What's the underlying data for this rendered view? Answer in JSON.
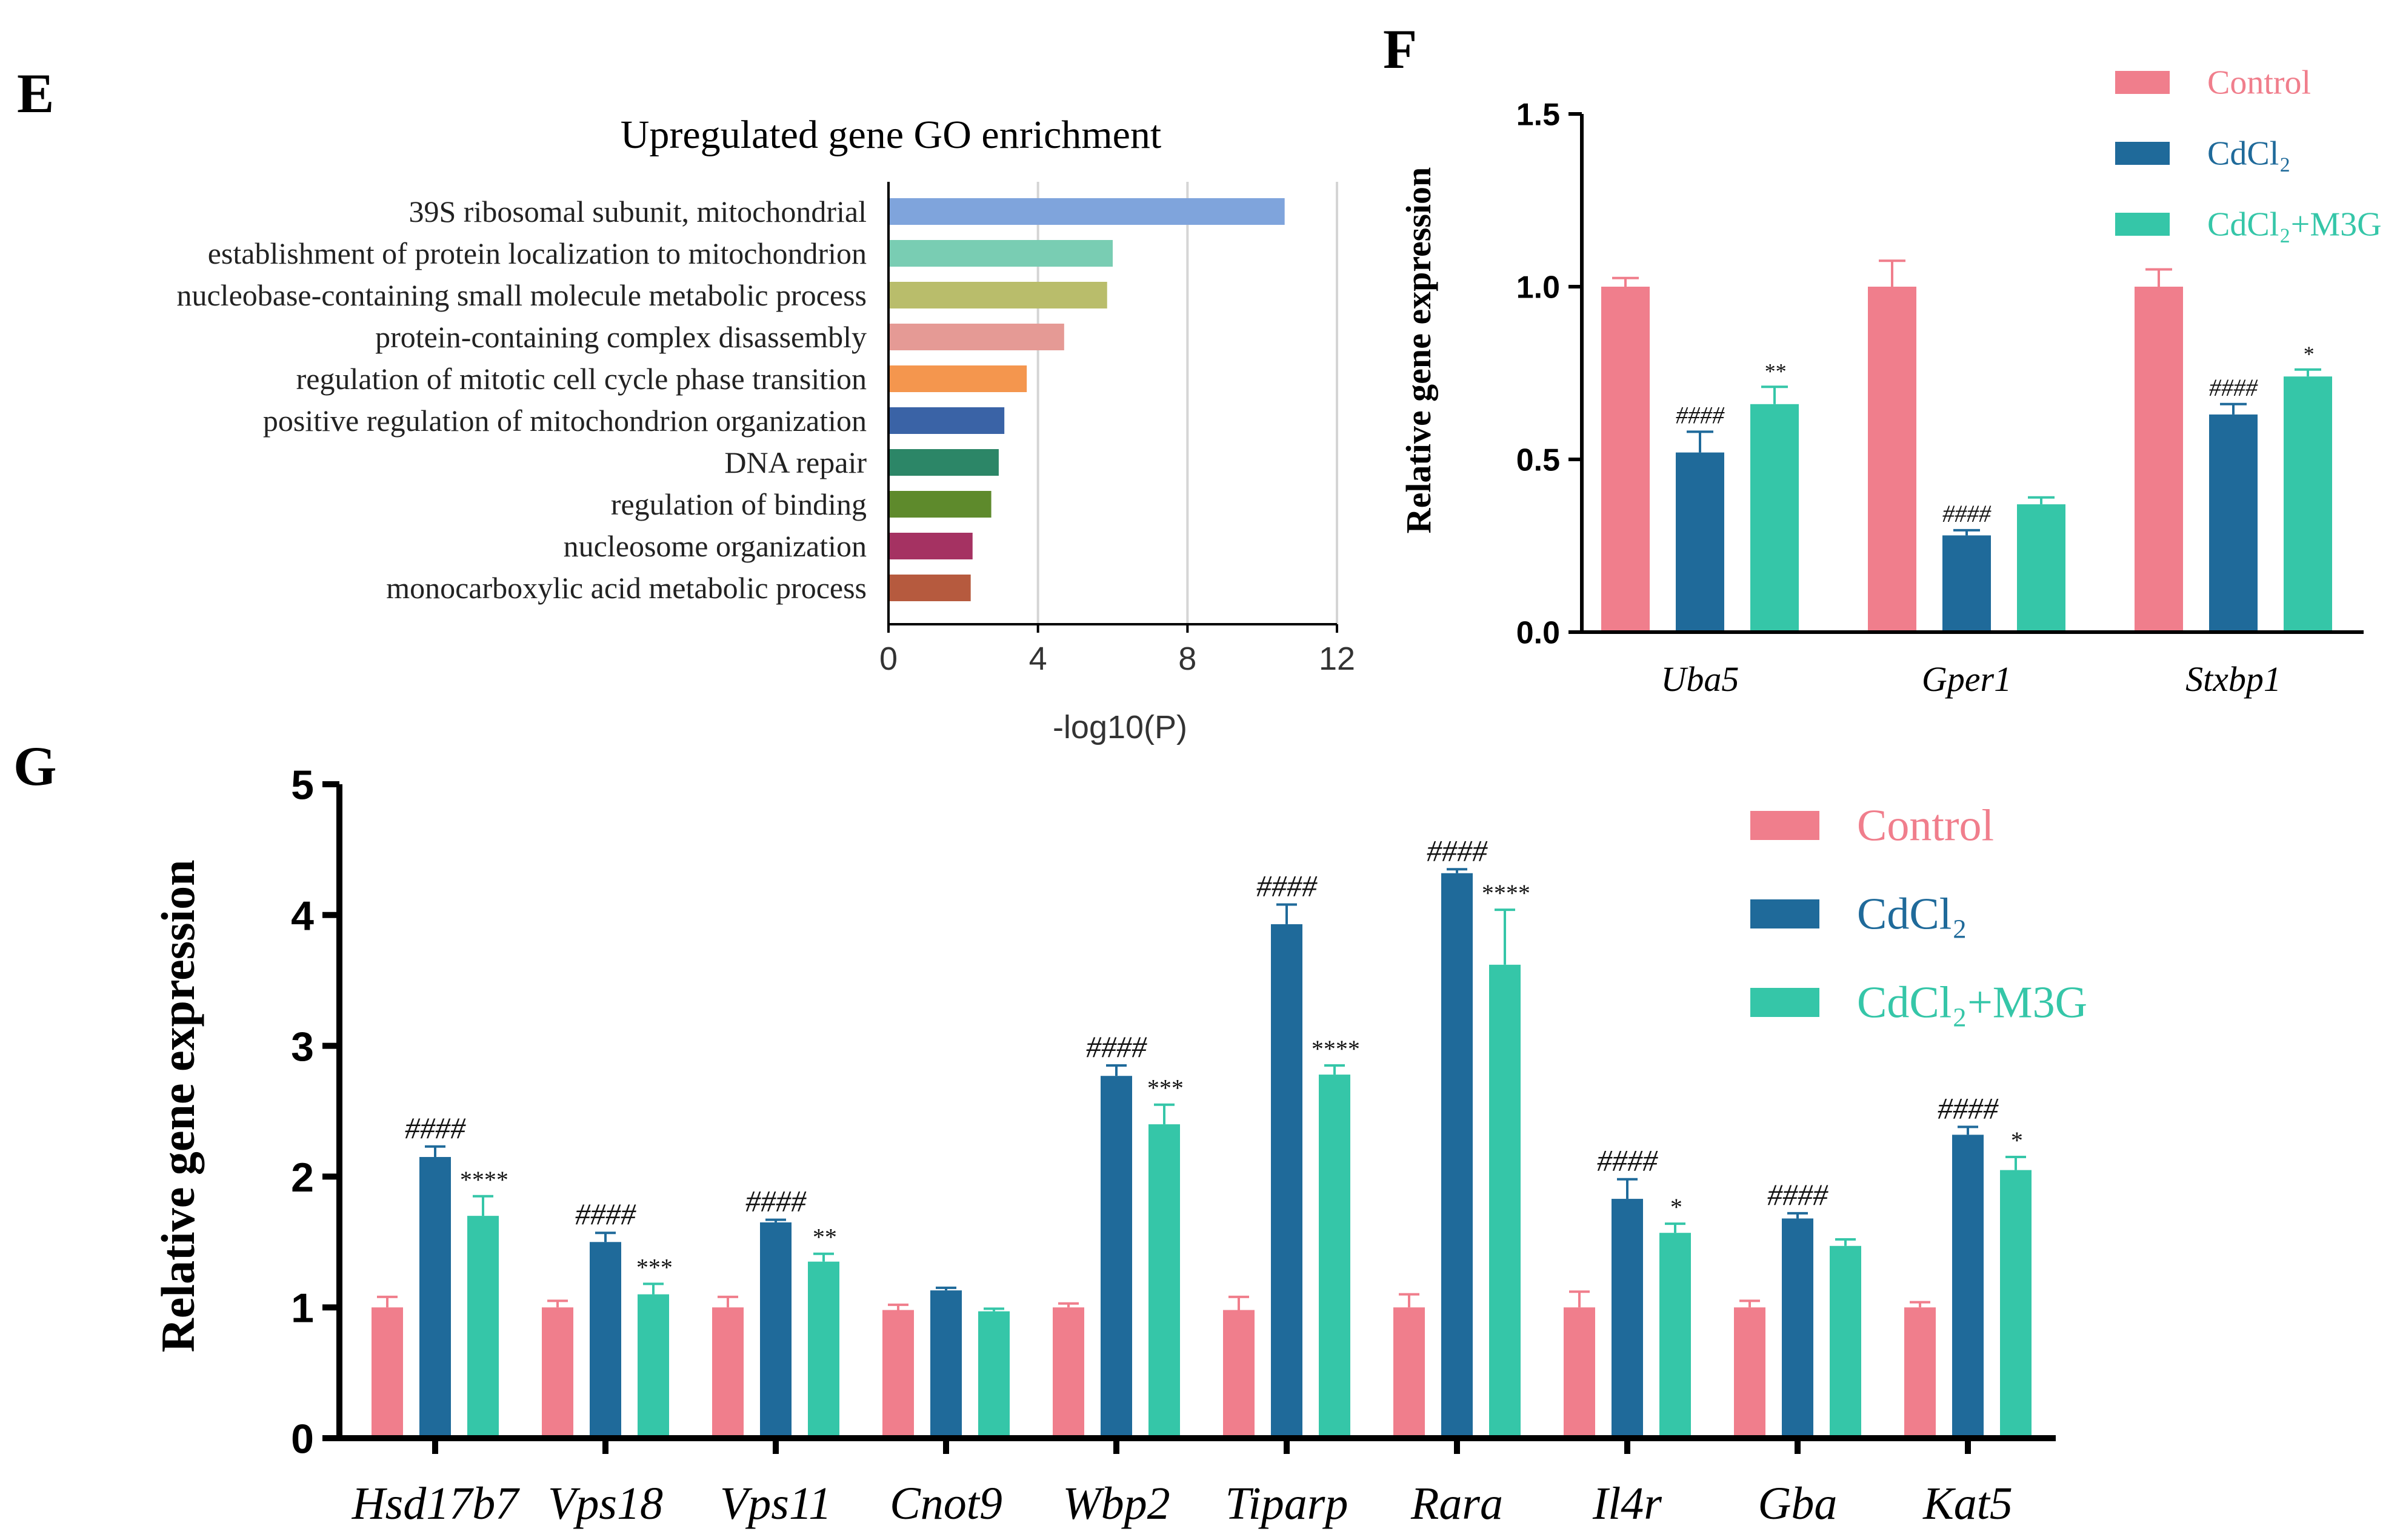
{
  "panels": {
    "E": "E",
    "F": "F",
    "G": "G"
  },
  "colors": {
    "control": "#F07E8C",
    "cdcl2": "#1F6A9A",
    "m3g": "#35C6A8",
    "axis": "#000000",
    "grid": "#D5D5D5"
  },
  "chart_data": [
    {
      "id": "E",
      "type": "bar",
      "orientation": "horizontal",
      "title": "Upregulated gene GO enrichment",
      "xlabel": "-log10(P)",
      "ylabel": "",
      "xlim": [
        0,
        12
      ],
      "xticks": [
        "0",
        "4",
        "8",
        "12"
      ],
      "grid": true,
      "categories": [
        "39S ribosomal subunit, mitochondrial",
        "establishment of protein localization to mitochondrion",
        "nucleobase-containing small molecule metabolic process",
        "protein-containing complex disassembly",
        "regulation of mitotic cell cycle phase transition",
        "positive regulation of mitochondrion organization",
        "DNA repair",
        "regulation of binding",
        "nucleosome organization",
        "monocarboxylic acid metabolic process"
      ],
      "values": [
        10.6,
        6.0,
        5.85,
        4.7,
        3.7,
        3.1,
        2.95,
        2.75,
        2.25,
        2.2
      ],
      "bar_colors": [
        "#7FA4DC",
        "#79CDB3",
        "#B9BD6B",
        "#E59A95",
        "#F4964E",
        "#3A63A6",
        "#2C8667",
        "#5E8A2C",
        "#A53262",
        "#B65A3E"
      ]
    },
    {
      "id": "F",
      "type": "bar",
      "ylabel": "Relative gene expression",
      "xlabel": "",
      "ylim": [
        0,
        1.5
      ],
      "yticks": [
        "0.0",
        "0.5",
        "1.0",
        "1.5"
      ],
      "categories": [
        "Uba5",
        "Gper1",
        "Stxbp1"
      ],
      "series": [
        {
          "name": "Control",
          "legend_label": "Control",
          "values": [
            1.0,
            1.0,
            1.0
          ],
          "errors": [
            0.025,
            0.075,
            0.05
          ]
        },
        {
          "name": "CdCl2",
          "legend_label": "CdCl₂",
          "values": [
            0.52,
            0.28,
            0.63
          ],
          "errors": [
            0.06,
            0.015,
            0.03
          ]
        },
        {
          "name": "CdCl2+M3G",
          "legend_label": "CdCl₂+M3G",
          "values": [
            0.66,
            0.37,
            0.74
          ],
          "errors": [
            0.05,
            0.02,
            0.02
          ]
        }
      ],
      "annotations": [
        {
          "text": "####",
          "category": 0,
          "series": 1
        },
        {
          "text": "**",
          "category": 0,
          "series": 2
        },
        {
          "text": "####",
          "category": 1,
          "series": 1
        },
        {
          "text": "####",
          "category": 2,
          "series": 1
        },
        {
          "text": "*",
          "category": 2,
          "series": 2
        }
      ],
      "legend": "top-right"
    },
    {
      "id": "G",
      "type": "bar",
      "ylabel": "Relative gene expression",
      "xlabel": "",
      "ylim": [
        0,
        5
      ],
      "yticks": [
        "0",
        "1",
        "2",
        "3",
        "4",
        "5"
      ],
      "categories": [
        "Hsd17b7",
        "Vps18",
        "Vps11",
        "Cnot9",
        "Wbp2",
        "Tiparp",
        "Rara",
        "Il4r",
        "Gba",
        "Kat5"
      ],
      "series": [
        {
          "name": "Control",
          "legend_label": "Control",
          "values": [
            1.0,
            1.0,
            1.0,
            0.98,
            1.0,
            0.98,
            1.0,
            1.0,
            1.0,
            1.0
          ],
          "errors": [
            0.08,
            0.05,
            0.08,
            0.04,
            0.03,
            0.1,
            0.1,
            0.12,
            0.05,
            0.04
          ]
        },
        {
          "name": "CdCl2",
          "legend_label": "CdCl₂",
          "values": [
            2.15,
            1.5,
            1.65,
            1.13,
            2.77,
            3.93,
            4.32,
            1.83,
            1.68,
            2.32
          ],
          "errors": [
            0.08,
            0.07,
            0.02,
            0.02,
            0.08,
            0.15,
            0.03,
            0.15,
            0.04,
            0.06
          ]
        },
        {
          "name": "CdCl2+M3G",
          "legend_label": "CdCl₂+M3G",
          "values": [
            1.7,
            1.1,
            1.35,
            0.97,
            2.4,
            2.78,
            3.62,
            1.57,
            1.47,
            2.05
          ],
          "errors": [
            0.15,
            0.08,
            0.06,
            0.02,
            0.15,
            0.07,
            0.42,
            0.07,
            0.05,
            0.1
          ]
        }
      ],
      "annotations": [
        {
          "text": "####",
          "category": 0,
          "series": 1
        },
        {
          "text": "****",
          "category": 0,
          "series": 2
        },
        {
          "text": "####",
          "category": 1,
          "series": 1
        },
        {
          "text": "***",
          "category": 1,
          "series": 2
        },
        {
          "text": "####",
          "category": 2,
          "series": 1
        },
        {
          "text": "**",
          "category": 2,
          "series": 2
        },
        {
          "text": "####",
          "category": 4,
          "series": 1
        },
        {
          "text": "***",
          "category": 4,
          "series": 2
        },
        {
          "text": "####",
          "category": 5,
          "series": 1
        },
        {
          "text": "****",
          "category": 5,
          "series": 2
        },
        {
          "text": "####",
          "category": 6,
          "series": 1
        },
        {
          "text": "****",
          "category": 6,
          "series": 2
        },
        {
          "text": "####",
          "category": 7,
          "series": 1
        },
        {
          "text": "*",
          "category": 7,
          "series": 2
        },
        {
          "text": "####",
          "category": 8,
          "series": 1
        },
        {
          "text": "####",
          "category": 9,
          "series": 1
        },
        {
          "text": "*",
          "category": 9,
          "series": 2
        }
      ],
      "legend": "top-right"
    }
  ]
}
